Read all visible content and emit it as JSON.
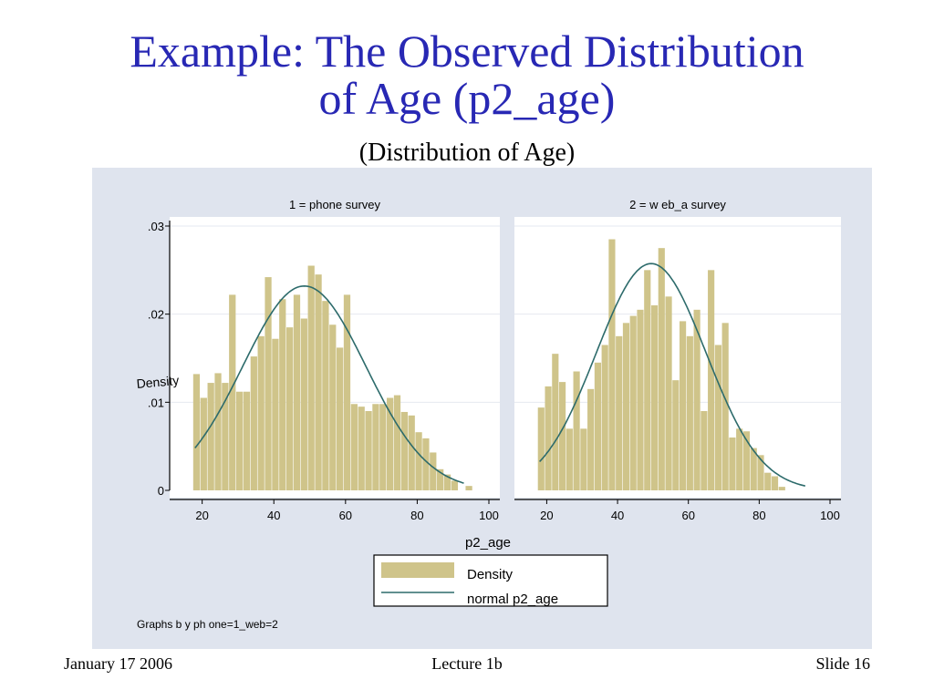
{
  "slide": {
    "title_line1": "Example: The Observed Distribution",
    "title_line2": "of Age (p2_age)",
    "subtitle": "(Distribution of Age)"
  },
  "footer": {
    "date": "January 17 2006",
    "lecture": "Lecture 1b",
    "slide_number": "Slide 16"
  },
  "chart_data": {
    "type": "bar",
    "panels": [
      {
        "label": "1 = phone survey",
        "bins_x": [
          18.5,
          20.5,
          22.5,
          24.5,
          26.5,
          28.5,
          30.5,
          32.5,
          34.5,
          36.5,
          38.5,
          40.5,
          42.5,
          44.5,
          46.5,
          48.5,
          50.5,
          52.5,
          54.5,
          56.5,
          58.5,
          60.5,
          62.5,
          64.5,
          66.5,
          68.5,
          70.5,
          72.5,
          74.5,
          76.5,
          78.5,
          80.5,
          82.5,
          84.5,
          86.5,
          88.5,
          90.5,
          92.5,
          94.5
        ],
        "density": [
          0.0132,
          0.0105,
          0.0122,
          0.0133,
          0.0122,
          0.0222,
          0.0112,
          0.0112,
          0.0152,
          0.0175,
          0.0242,
          0.0172,
          0.0217,
          0.0185,
          0.0222,
          0.0195,
          0.0255,
          0.0245,
          0.0215,
          0.0188,
          0.0162,
          0.0222,
          0.0098,
          0.0095,
          0.009,
          0.0098,
          0.0098,
          0.0105,
          0.0108,
          0.0089,
          0.0085,
          0.0066,
          0.0059,
          0.0043,
          0.0024,
          0.0018,
          0.0011,
          0.0,
          0.0005
        ],
        "normal_curve": {
          "mean": 48.5,
          "sd": 17.2,
          "x_range": [
            18,
            93
          ]
        }
      },
      {
        "label": "2 = w eb_a survey",
        "bins_x": [
          18.5,
          20.5,
          22.5,
          24.5,
          26.5,
          28.5,
          30.5,
          32.5,
          34.5,
          36.5,
          38.5,
          40.5,
          42.5,
          44.5,
          46.5,
          48.5,
          50.5,
          52.5,
          54.5,
          56.5,
          58.5,
          60.5,
          62.5,
          64.5,
          66.5,
          68.5,
          70.5,
          72.5,
          74.5,
          76.5,
          78.5,
          80.5,
          82.5,
          84.5,
          86.5
        ],
        "density": [
          0.0094,
          0.0118,
          0.0155,
          0.0123,
          0.007,
          0.0135,
          0.007,
          0.0115,
          0.0145,
          0.0165,
          0.0285,
          0.0175,
          0.019,
          0.0198,
          0.0205,
          0.025,
          0.021,
          0.0275,
          0.022,
          0.0125,
          0.0192,
          0.0175,
          0.0205,
          0.009,
          0.025,
          0.0165,
          0.019,
          0.006,
          0.007,
          0.0067,
          0.0048,
          0.004,
          0.002,
          0.0016,
          0.0004
        ],
        "normal_curve": {
          "mean": 49.5,
          "sd": 15.5,
          "x_range": [
            18,
            93
          ]
        }
      }
    ],
    "xlabel": "p2_age",
    "ylabel": "Density",
    "xticks": [
      "20",
      "40",
      "60",
      "80",
      "100"
    ],
    "xticks_values": [
      20,
      40,
      60,
      80,
      100
    ],
    "yticks": [
      "0",
      ".01",
      ".02",
      ".03"
    ],
    "yticks_values": [
      0,
      0.01,
      0.02,
      0.03
    ],
    "xlim": [
      15,
      100
    ],
    "ylim": [
      0,
      0.03
    ],
    "legend": {
      "entries": [
        "Density",
        "normal p2_age"
      ],
      "placement": "bottom"
    },
    "note": "Graphs b y ph one=1_web=2",
    "colors": {
      "bar": "#cfc48a",
      "curve": "#2d6b6b",
      "panel_background": "#dfe4ee",
      "strip": "#dfe4ee",
      "title": "#2828b4"
    }
  }
}
